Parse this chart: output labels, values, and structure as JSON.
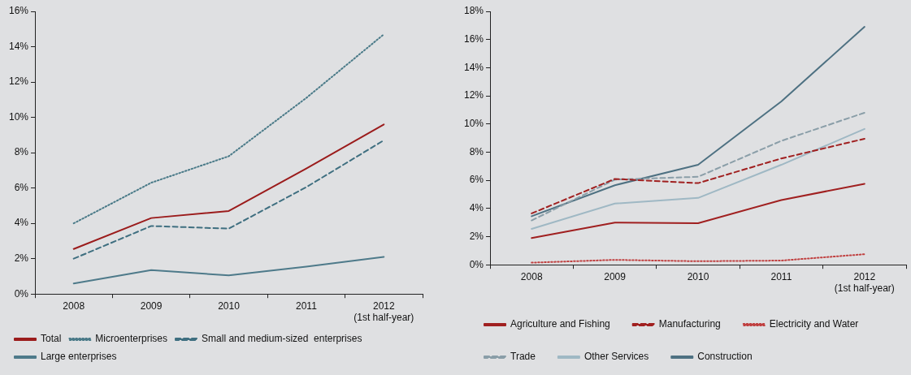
{
  "chart_data": [
    {
      "type": "line",
      "categories": [
        "2008",
        "2009",
        "2010",
        "2011",
        "2012\n(1st half-year)"
      ],
      "ylim": [
        0,
        16
      ],
      "yticks": [
        {
          "value": 0,
          "label": "0%"
        },
        {
          "value": 2,
          "label": "2%"
        },
        {
          "value": 4,
          "label": "4%"
        },
        {
          "value": 6,
          "label": "6%"
        },
        {
          "value": 8,
          "label": "8%"
        },
        {
          "value": 10,
          "label": "10%"
        },
        {
          "value": 12,
          "label": "12%"
        },
        {
          "value": 14,
          "label": "14%"
        },
        {
          "value": 16,
          "label": "16%"
        }
      ],
      "grid": false,
      "legend": "bottom",
      "marker": "none",
      "series": [
        {
          "name": "Total",
          "color": "#9b1c1c",
          "line_style": "solid",
          "values": [
            2.55,
            4.3,
            4.7,
            7.1,
            9.6
          ]
        },
        {
          "name": "Microenterprises",
          "color": "#4a7a88",
          "line_style": "dotted",
          "values": [
            4.0,
            6.3,
            7.8,
            11.1,
            14.7
          ]
        },
        {
          "name": "Small and medium-sized  enterprises",
          "color": "#3f6f80",
          "line_style": "dashed",
          "values": [
            2.0,
            3.85,
            3.7,
            6.05,
            8.7
          ]
        },
        {
          "name": "Large enterprises",
          "color": "#4e7a8a",
          "line_style": "solid",
          "values": [
            0.6,
            1.35,
            1.05,
            1.55,
            2.1
          ]
        }
      ]
    },
    {
      "type": "line",
      "categories": [
        "2008",
        "2009",
        "2010",
        "2011",
        "2012\n(1st half-year)"
      ],
      "ylim": [
        0,
        18
      ],
      "yticks": [
        {
          "value": 0,
          "label": "0%"
        },
        {
          "value": 2,
          "label": "2%"
        },
        {
          "value": 4,
          "label": "4%"
        },
        {
          "value": 6,
          "label": "6%"
        },
        {
          "value": 8,
          "label": "8%"
        },
        {
          "value": 10,
          "label": "10%"
        },
        {
          "value": 12,
          "label": "12%"
        },
        {
          "value": 14,
          "label": "14%"
        },
        {
          "value": 16,
          "label": "16%"
        },
        {
          "value": 18,
          "label": "18%"
        }
      ],
      "grid": false,
      "legend": "bottom",
      "marker": "none",
      "series": [
        {
          "name": "Agriculture and Fishing",
          "color": "#a02020",
          "line_style": "solid",
          "values": [
            1.9,
            3.0,
            2.95,
            4.6,
            5.75
          ]
        },
        {
          "name": "Manufacturing",
          "color": "#a02020",
          "line_style": "dashed",
          "values": [
            3.65,
            6.1,
            5.8,
            7.55,
            8.95
          ]
        },
        {
          "name": "Electricity and Water",
          "color": "#c04040",
          "line_style": "dotted",
          "values": [
            0.15,
            0.35,
            0.25,
            0.3,
            0.75
          ]
        },
        {
          "name": "Trade",
          "color": "#8a9ea8",
          "line_style": "dashed",
          "values": [
            3.15,
            6.05,
            6.25,
            8.8,
            10.8
          ]
        },
        {
          "name": "Other Services",
          "color": "#9fb8c4",
          "line_style": "solid",
          "values": [
            2.55,
            4.35,
            4.75,
            7.1,
            9.65
          ]
        },
        {
          "name": "Construction",
          "color": "#4e7182",
          "line_style": "solid",
          "values": [
            3.45,
            5.65,
            7.1,
            11.6,
            16.9
          ]
        }
      ]
    }
  ]
}
